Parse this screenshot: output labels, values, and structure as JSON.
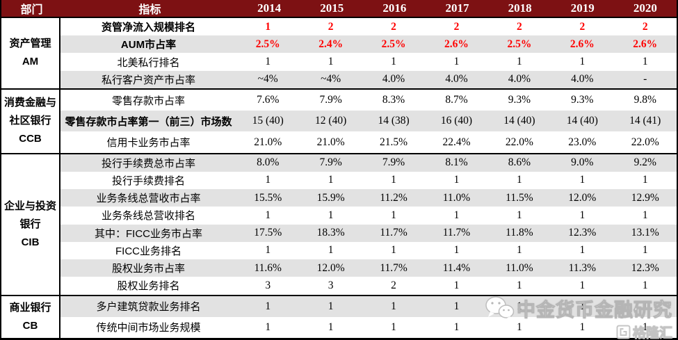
{
  "header": {
    "dept_label": "部门",
    "indicator_label": "指标",
    "years": [
      "2014",
      "2015",
      "2016",
      "2017",
      "2018",
      "2019",
      "2020"
    ]
  },
  "groups": [
    {
      "name_lines": [
        "资产管理",
        "AM"
      ],
      "rows": [
        {
          "label": "资管净流入规模排名",
          "bold": true,
          "red": true,
          "values": [
            "1",
            "2",
            "2",
            "2",
            "2",
            "2",
            "2"
          ]
        },
        {
          "label": "AUM市占率",
          "bold": true,
          "red": true,
          "values": [
            "2.5%",
            "2.4%",
            "2.5%",
            "2.6%",
            "2.5%",
            "2.6%",
            "2.6%"
          ]
        },
        {
          "label": "北美私行排名",
          "bold": false,
          "red": false,
          "values": [
            "1",
            "1",
            "1",
            "1",
            "1",
            "1",
            "1"
          ]
        },
        {
          "label": "私行客户资产市占率",
          "bold": false,
          "red": false,
          "values": [
            "~4%",
            "~4%",
            "4.0%",
            "4.0%",
            "4.0%",
            "4.0%",
            "-"
          ]
        }
      ]
    },
    {
      "name_lines": [
        "消费金融与",
        "社区银行",
        "CCB"
      ],
      "rows": [
        {
          "label": "零售存款市占率",
          "bold": false,
          "red": false,
          "values": [
            "7.6%",
            "7.9%",
            "8.3%",
            "8.7%",
            "9.3%",
            "9.3%",
            "9.8%"
          ]
        },
        {
          "label": "零售存款市占率第一（前三）市场数",
          "bold": true,
          "red": false,
          "values": [
            "15 (40)",
            "12 (40)",
            "14 (38)",
            "16 (40)",
            "14 (40)",
            "14 (40)",
            "14 (41)"
          ]
        },
        {
          "label": "信用卡业务市占率",
          "bold": false,
          "red": false,
          "values": [
            "21.0%",
            "21.0%",
            "21.5%",
            "22.4%",
            "22.0%",
            "23.0%",
            "22.0%"
          ]
        }
      ]
    },
    {
      "name_lines": [
        "企业与投资",
        "银行",
        "CIB"
      ],
      "rows": [
        {
          "label": "投行手续费总市占率",
          "bold": false,
          "red": false,
          "values": [
            "8.0%",
            "7.9%",
            "7.9%",
            "8.1%",
            "8.6%",
            "9.0%",
            "9.2%"
          ]
        },
        {
          "label": "投行手续费排名",
          "bold": false,
          "red": false,
          "values": [
            "1",
            "1",
            "1",
            "1",
            "1",
            "1",
            "1"
          ]
        },
        {
          "label": "业务条线总营收市占率",
          "bold": false,
          "red": false,
          "values": [
            "15.5%",
            "15.9%",
            "11.2%",
            "11.0%",
            "11.5%",
            "12.0%",
            "12.9%"
          ]
        },
        {
          "label": "业务条线总营收排名",
          "bold": false,
          "red": false,
          "values": [
            "1",
            "1",
            "1",
            "1",
            "1",
            "1",
            "1"
          ]
        },
        {
          "label": "其中：FICC业务市占率",
          "bold": false,
          "red": false,
          "values": [
            "17.5%",
            "18.3%",
            "11.7%",
            "11.7%",
            "11.8%",
            "12.3%",
            "13.1%"
          ]
        },
        {
          "label": "FICC业务排名",
          "bold": false,
          "red": false,
          "values": [
            "1",
            "1",
            "1",
            "1",
            "1",
            "1",
            "1"
          ]
        },
        {
          "label": "股权业务市占率",
          "bold": false,
          "red": false,
          "values": [
            "11.6%",
            "12.0%",
            "11.7%",
            "11.4%",
            "11.0%",
            "11.3%",
            "12.3%"
          ]
        },
        {
          "label": "股权业务排名",
          "bold": false,
          "red": false,
          "values": [
            "3",
            "3",
            "2",
            "1",
            "1",
            "1",
            "1"
          ]
        }
      ]
    },
    {
      "name_lines": [
        "商业银行",
        "CB"
      ],
      "rows": [
        {
          "label": "多户建筑贷款业务排名",
          "bold": false,
          "red": false,
          "values": [
            "1",
            "1",
            "1",
            "1",
            "1",
            "1",
            "1"
          ]
        },
        {
          "label": "传统中间市场业务规模",
          "bold": false,
          "red": false,
          "values": [
            "1",
            "1",
            "1",
            "1",
            "1",
            "1",
            "1"
          ]
        }
      ]
    }
  ],
  "watermark": {
    "brand_text": "中金货币金融研究",
    "logo_text": "格隆汇"
  },
  "colors": {
    "header_bg": "#7D1113",
    "red_value": "#FF0000",
    "stripe": "#E2E2E2"
  }
}
